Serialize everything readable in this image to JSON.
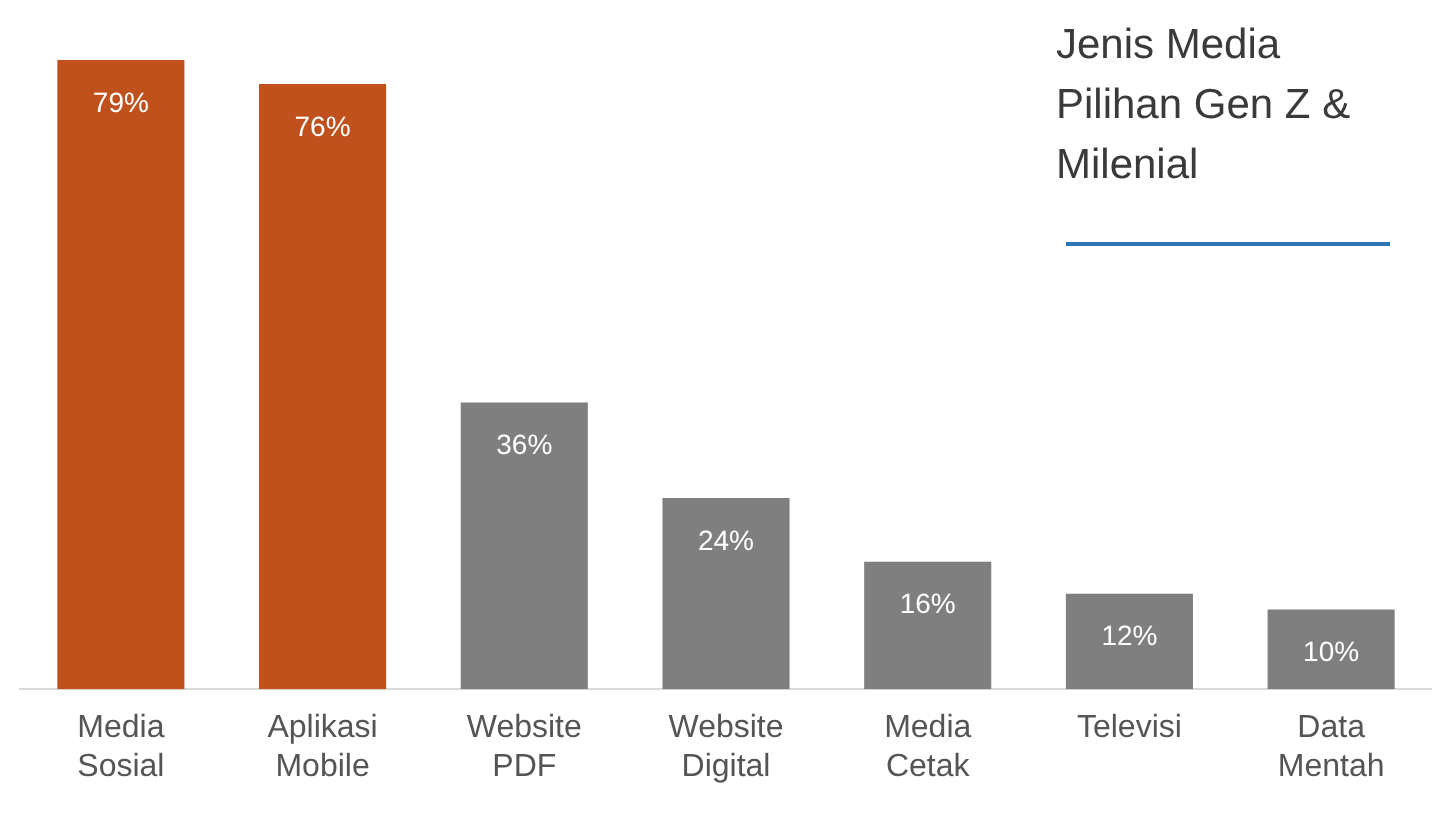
{
  "chart_data": {
    "type": "bar",
    "title": "Jenis Media Pilihan Gen Z & Milenial",
    "categories": [
      "Media Sosial",
      "Aplikasi Mobile",
      "Website PDF",
      "Website Digital",
      "Media Cetak",
      "Televisi",
      "Data Mentah"
    ],
    "values": [
      79,
      76,
      36,
      24,
      16,
      12,
      10
    ],
    "colors": [
      "#c0501c",
      "#c0501c",
      "#7f7f7f",
      "#7f7f7f",
      "#7f7f7f",
      "#7f7f7f",
      "#7f7f7f"
    ],
    "value_labels": [
      "79%",
      "76%",
      "36%",
      "24%",
      "16%",
      "12%",
      "10%"
    ],
    "grid": false,
    "legend": false
  }
}
